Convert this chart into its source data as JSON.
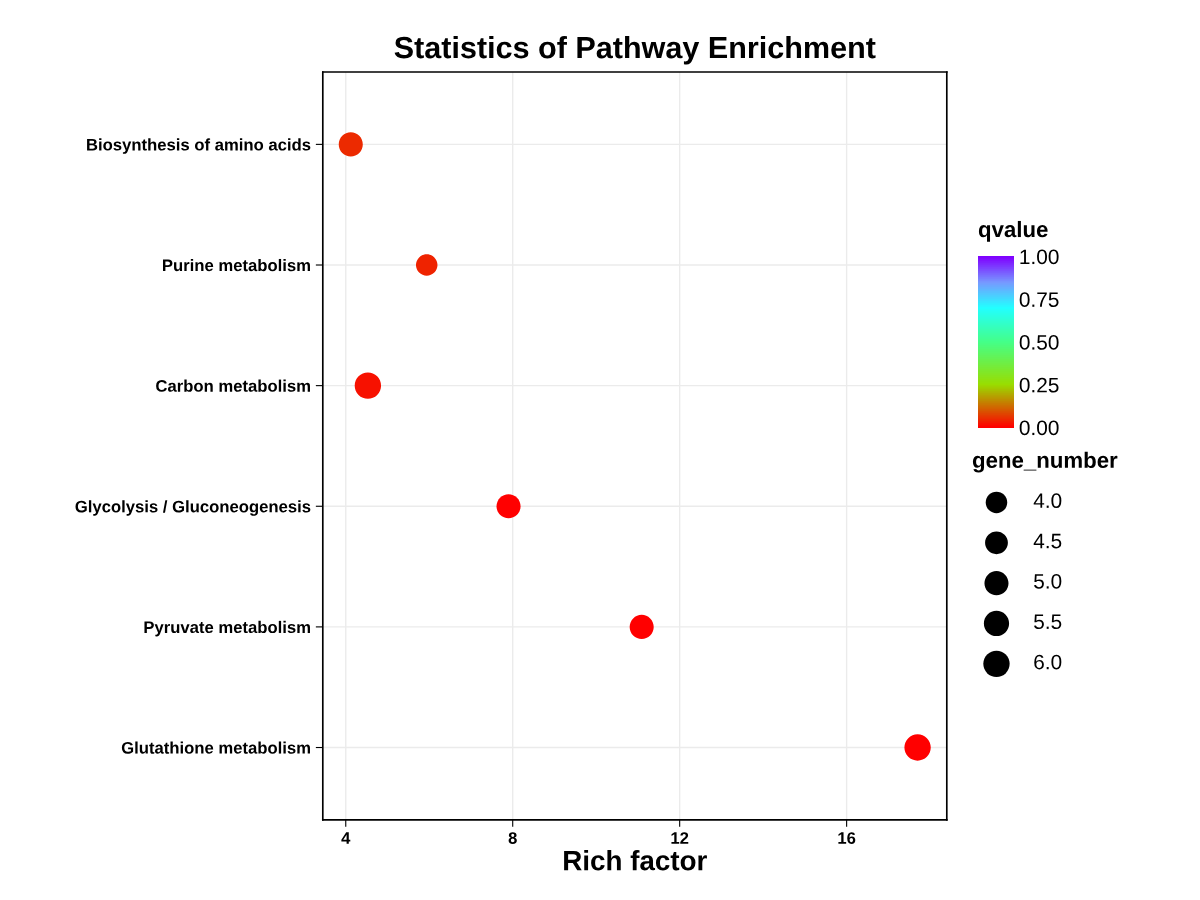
{
  "chart_data": {
    "type": "bubble",
    "title": "Statistics of Pathway Enrichment",
    "xlabel": "Rich factor",
    "categories": [
      "Biosynthesis of amino acids",
      "Purine metabolism",
      "Carbon metabolism",
      "Glycolysis / Gluconeogenesis",
      "Pyruvate metabolism",
      "Glutathione metabolism"
    ],
    "values": [
      4.12,
      5.94,
      4.53,
      7.9,
      11.09,
      17.7
    ],
    "sizes": [
      5,
      4,
      6,
      5,
      5,
      6
    ],
    "cvalues": [
      0.05,
      0.04,
      0.02,
      0.0,
      0.0,
      0.0
    ],
    "size_legend": [
      {
        "value": 4,
        "label": "4.0"
      },
      {
        "value": 4.5,
        "label": "4.5"
      },
      {
        "value": 5,
        "label": "5.0"
      },
      {
        "value": 5.5,
        "label": "5.5"
      },
      {
        "value": 6,
        "label": "6.0"
      }
    ],
    "legend_title": "gene_number",
    "clabel": "qvalue",
    "clim": [
      0,
      1
    ],
    "cticks": [
      {
        "value": 0,
        "label": "0.00"
      },
      {
        "value": 0.25,
        "label": "0.25"
      },
      {
        "value": 0.5,
        "label": "0.50"
      },
      {
        "value": 0.75,
        "label": "0.75"
      },
      {
        "value": 1,
        "label": "1.00"
      }
    ],
    "xlim": [
      3.45,
      18.4
    ],
    "xticks": [
      4,
      8,
      12,
      16
    ],
    "grid": true,
    "orientation": "horizontal"
  }
}
